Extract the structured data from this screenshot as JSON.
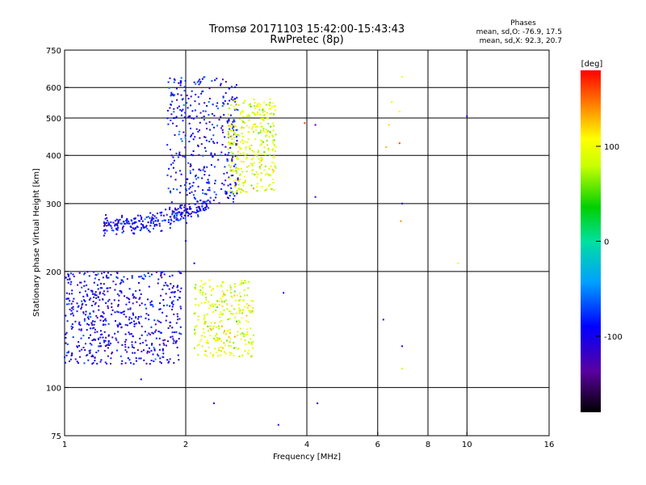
{
  "chart_data": {
    "type": "scatter",
    "title": "Tromsø 20171103 15:42:00-15:43:43",
    "subtitle": "RwPretec (8p)",
    "stats": {
      "header": "Phases",
      "line1": "mean, sd,O:  -76.9, 17.5",
      "line2": "mean, sd,X:  92.3, 20.7"
    },
    "xlabel": "Frequency [MHz]",
    "ylabel": "Stationary phase Virtual Height [km]",
    "xscale": "log",
    "yscale": "log",
    "xlim": [
      1,
      16
    ],
    "ylim": [
      75,
      750
    ],
    "xticks": [
      1,
      2,
      4,
      6,
      8,
      10,
      16
    ],
    "yticks": [
      75,
      100,
      200,
      300,
      400,
      500,
      600,
      750
    ],
    "xgrid": [
      2,
      4,
      6,
      8,
      10
    ],
    "ygrid": [
      100,
      200,
      300,
      400,
      500,
      600
    ],
    "grid": true,
    "colorbar": {
      "label": "[deg]",
      "min": -180,
      "max": 180,
      "ticks": [
        -100,
        0,
        100
      ]
    },
    "clusters": [
      {
        "desc": "O-mode F trace",
        "type": "arc",
        "f0": 1.25,
        "f1": 2.3,
        "hmin": 263,
        "hmax": 300,
        "spread": 15,
        "n": 280,
        "phase": -95,
        "psd": 18
      },
      {
        "desc": "O-mode F upper",
        "type": "box",
        "f0": 1.8,
        "f1": 2.7,
        "h0": 300,
        "h1": 640,
        "n": 380,
        "phase": -95,
        "psd": 20
      },
      {
        "desc": "X-mode F trace",
        "type": "box",
        "f0": 2.55,
        "f1": 3.35,
        "h0": 320,
        "h1": 560,
        "n": 320,
        "phase": 92,
        "psd": 18
      },
      {
        "desc": "O-mode low layer",
        "type": "box",
        "f0": 1.0,
        "f1": 1.95,
        "h0": 115,
        "h1": 200,
        "n": 600,
        "phase": -100,
        "psd": 20
      },
      {
        "desc": "X-mode low layer",
        "type": "box",
        "f0": 2.1,
        "f1": 2.95,
        "h0": 120,
        "h1": 190,
        "n": 280,
        "phase": 92,
        "psd": 18
      }
    ],
    "outliers": [
      [
        1.55,
        105,
        -95
      ],
      [
        2.35,
        91,
        -95
      ],
      [
        3.4,
        80,
        -100
      ],
      [
        4.25,
        91,
        -105
      ],
      [
        4.2,
        480,
        -120
      ],
      [
        3.95,
        485,
        165
      ],
      [
        4.2,
        312,
        -110
      ],
      [
        10.0,
        505,
        -110
      ],
      [
        6.9,
        300,
        -100
      ],
      [
        6.85,
        270,
        140
      ],
      [
        6.2,
        150,
        -105
      ],
      [
        6.9,
        128,
        -110
      ],
      [
        6.9,
        112,
        80
      ],
      [
        9.5,
        210,
        100
      ],
      [
        6.9,
        640,
        100
      ],
      [
        6.4,
        480,
        120
      ],
      [
        6.5,
        550,
        95
      ],
      [
        6.8,
        520,
        110
      ],
      [
        6.8,
        430,
        160
      ],
      [
        6.3,
        420,
        130
      ],
      [
        3.5,
        176,
        -110
      ],
      [
        2.0,
        240,
        -90
      ],
      [
        2.1,
        210,
        -90
      ]
    ]
  }
}
